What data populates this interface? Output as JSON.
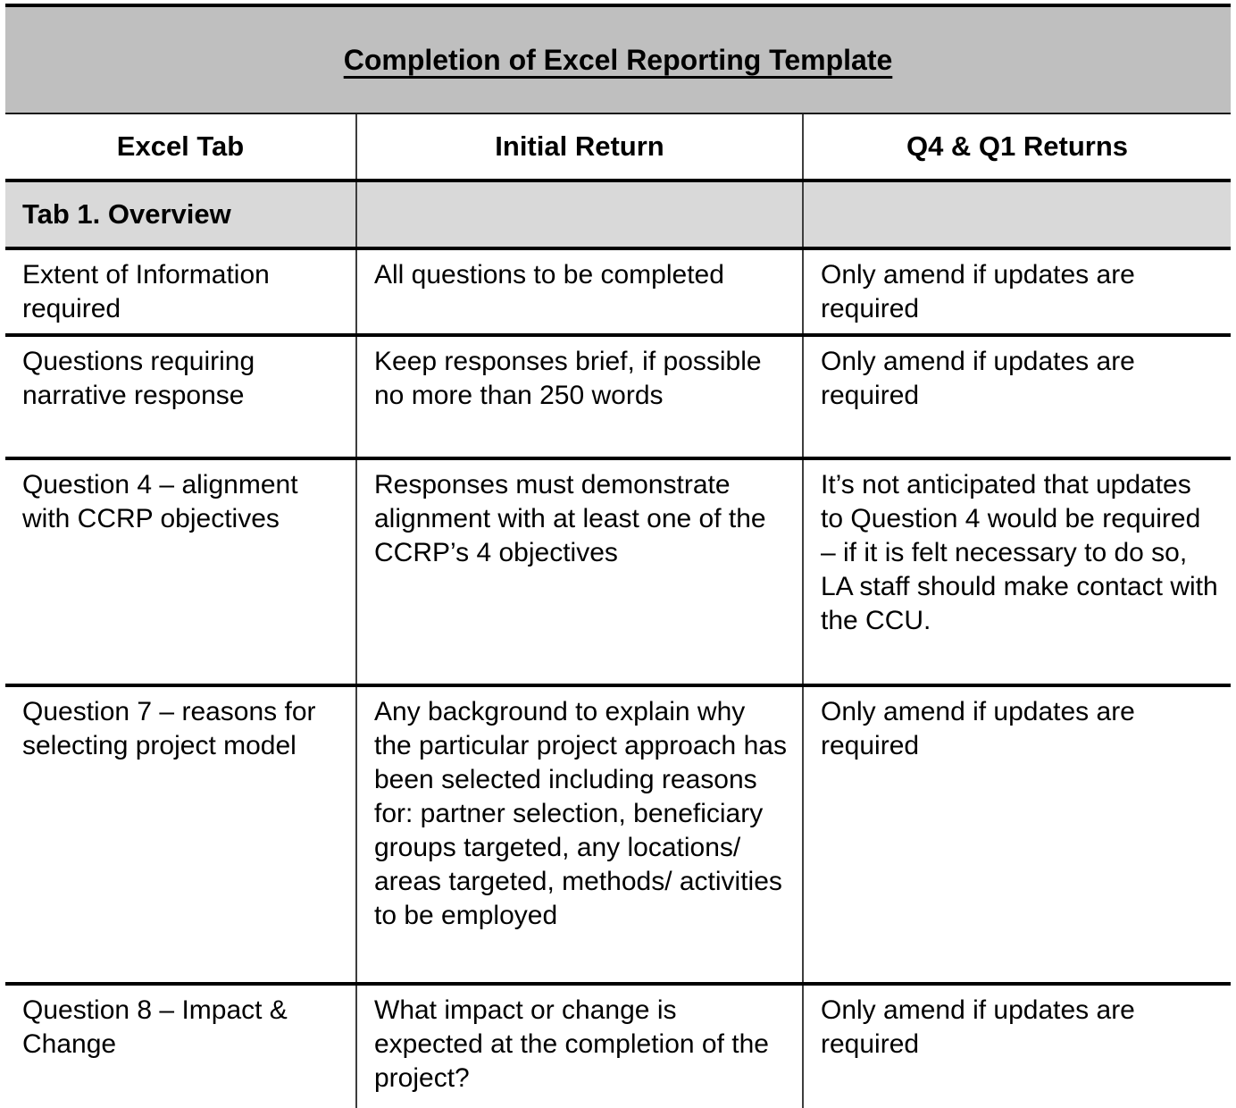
{
  "title": "Completion of Excel Reporting Template",
  "table": {
    "columns": [
      "Excel Tab",
      "Initial Return",
      "Q4 & Q1 Returns"
    ],
    "section_header": "Tab 1. Overview",
    "rows": [
      {
        "tab": "Extent of Information required",
        "initial": "All questions to be completed",
        "q4q1": "Only amend if updates are required"
      },
      {
        "tab": "Questions requiring narrative response",
        "initial": "Keep responses brief, if possible no more than 250 words",
        "q4q1": "Only amend if updates are required"
      },
      {
        "tab": "Question 4 – alignment with CCRP objectives",
        "initial": "Responses must demonstrate alignment with at least one of the CCRP’s 4 objectives",
        "q4q1": "It’s not anticipated that updates to Question 4 would be required – if it is felt necessary to do so, LA staff should make contact with the CCU."
      },
      {
        "tab": "Question 7 – reasons for selecting project model",
        "initial": "Any background to explain why the particular project approach has been selected including reasons for: partner selection, beneficiary groups targeted, any locations/ areas targeted, methods/ activities to be employed",
        "q4q1": "Only amend if updates are required"
      },
      {
        "tab": "Question 8 – Impact & Change",
        "initial": "What impact or change is expected at the completion of the project?",
        "q4q1": "Only amend if updates are required"
      }
    ],
    "colors": {
      "title_band_bg": "#bfbfbf",
      "section_row_bg": "#d9d9d9",
      "horizontal_border": "#000000",
      "vertical_divider": "#3d3d3d"
    }
  }
}
